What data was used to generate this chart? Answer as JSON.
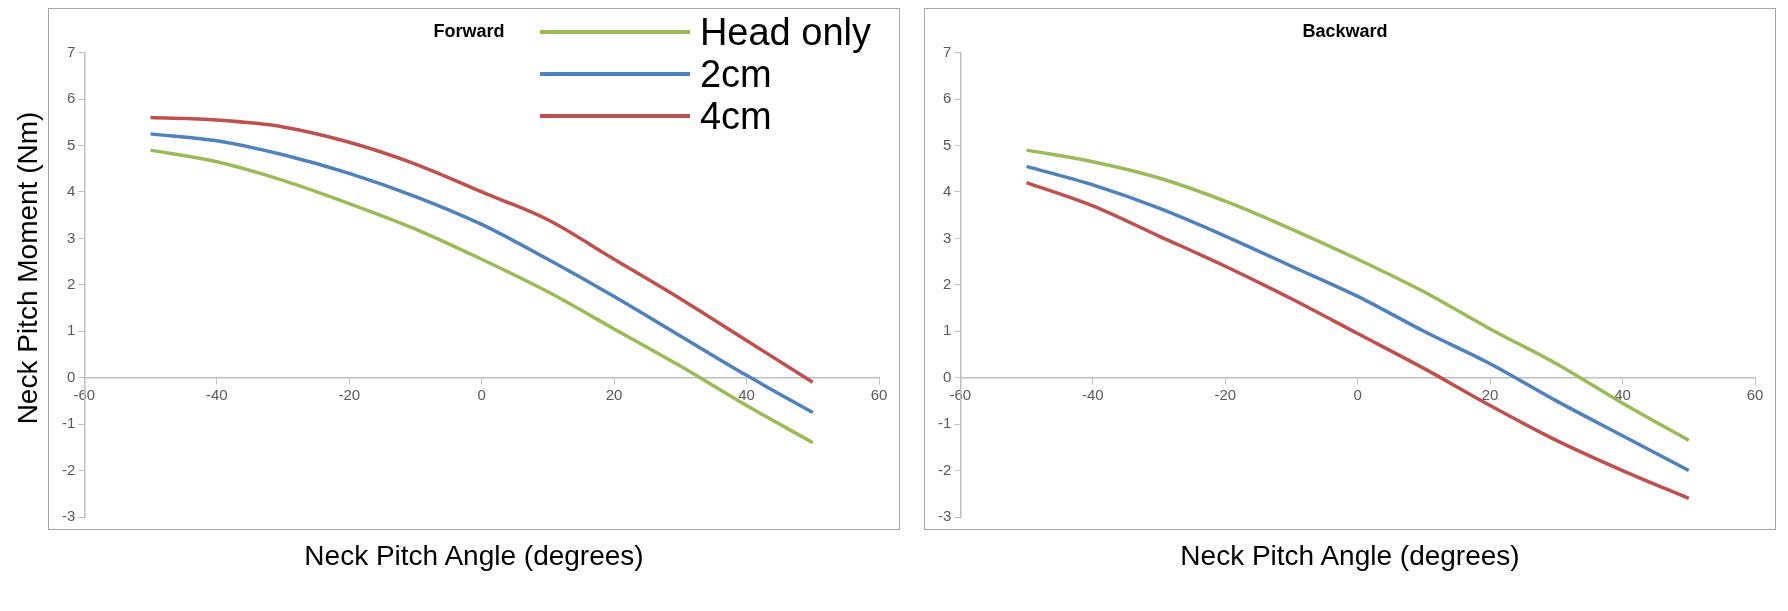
{
  "chart_data": [
    {
      "type": "line",
      "title": "Forward",
      "xlabel": "Neck Pitch Angle (degrees)",
      "ylabel": "Neck Pitch Moment (Nm)",
      "x": [
        -50,
        -40,
        -30,
        -20,
        -10,
        0,
        10,
        20,
        30,
        40,
        50
      ],
      "series": [
        {
          "name": "Head only",
          "color": "#9bbb59",
          "values": [
            4.9,
            4.65,
            4.25,
            3.75,
            3.2,
            2.55,
            1.85,
            1.05,
            0.25,
            -0.6,
            -1.4
          ]
        },
        {
          "name": "2cm",
          "color": "#4f81bd",
          "values": [
            5.25,
            5.1,
            4.8,
            4.4,
            3.9,
            3.3,
            2.55,
            1.75,
            0.9,
            0.05,
            -0.75
          ]
        },
        {
          "name": "4cm",
          "color": "#c0504d",
          "values": [
            5.6,
            5.55,
            5.4,
            5.07,
            4.6,
            4.0,
            3.4,
            2.55,
            1.7,
            0.8,
            -0.1
          ]
        }
      ],
      "xlim": [
        -60,
        60
      ],
      "xticks": [
        -60,
        -40,
        -20,
        0,
        20,
        40,
        60
      ],
      "ylim": [
        -3,
        7
      ],
      "yticks": [
        -3,
        -2,
        -1,
        0,
        1,
        2,
        3,
        4,
        5,
        6,
        7
      ],
      "legend": "top right",
      "marker": "none"
    },
    {
      "type": "line",
      "title": "Backward",
      "xlabel": "Neck Pitch Angle (degrees)",
      "x": [
        -50,
        -40,
        -30,
        -20,
        -10,
        0,
        10,
        20,
        30,
        40,
        50
      ],
      "series": [
        {
          "color": "#9bbb59",
          "values": [
            4.9,
            4.65,
            4.3,
            3.8,
            3.2,
            2.55,
            1.85,
            1.05,
            0.3,
            -0.55,
            -1.35
          ]
        },
        {
          "color": "#4f81bd",
          "values": [
            4.55,
            4.15,
            3.65,
            3.05,
            2.4,
            1.75,
            1.0,
            0.3,
            -0.5,
            -1.25,
            -2.0
          ]
        },
        {
          "color": "#c0504d",
          "values": [
            4.2,
            3.7,
            3.05,
            2.4,
            1.7,
            0.95,
            0.2,
            -0.6,
            -1.35,
            -2.0,
            -2.6
          ]
        }
      ],
      "xlim": [
        -60,
        60
      ],
      "xticks": [
        -60,
        -40,
        -20,
        0,
        20,
        40,
        60
      ],
      "ylim": [
        -3,
        7
      ],
      "yticks": [
        -3,
        -2,
        -1,
        0,
        1,
        2,
        3,
        4,
        5,
        6,
        7
      ],
      "marker": "none"
    }
  ]
}
